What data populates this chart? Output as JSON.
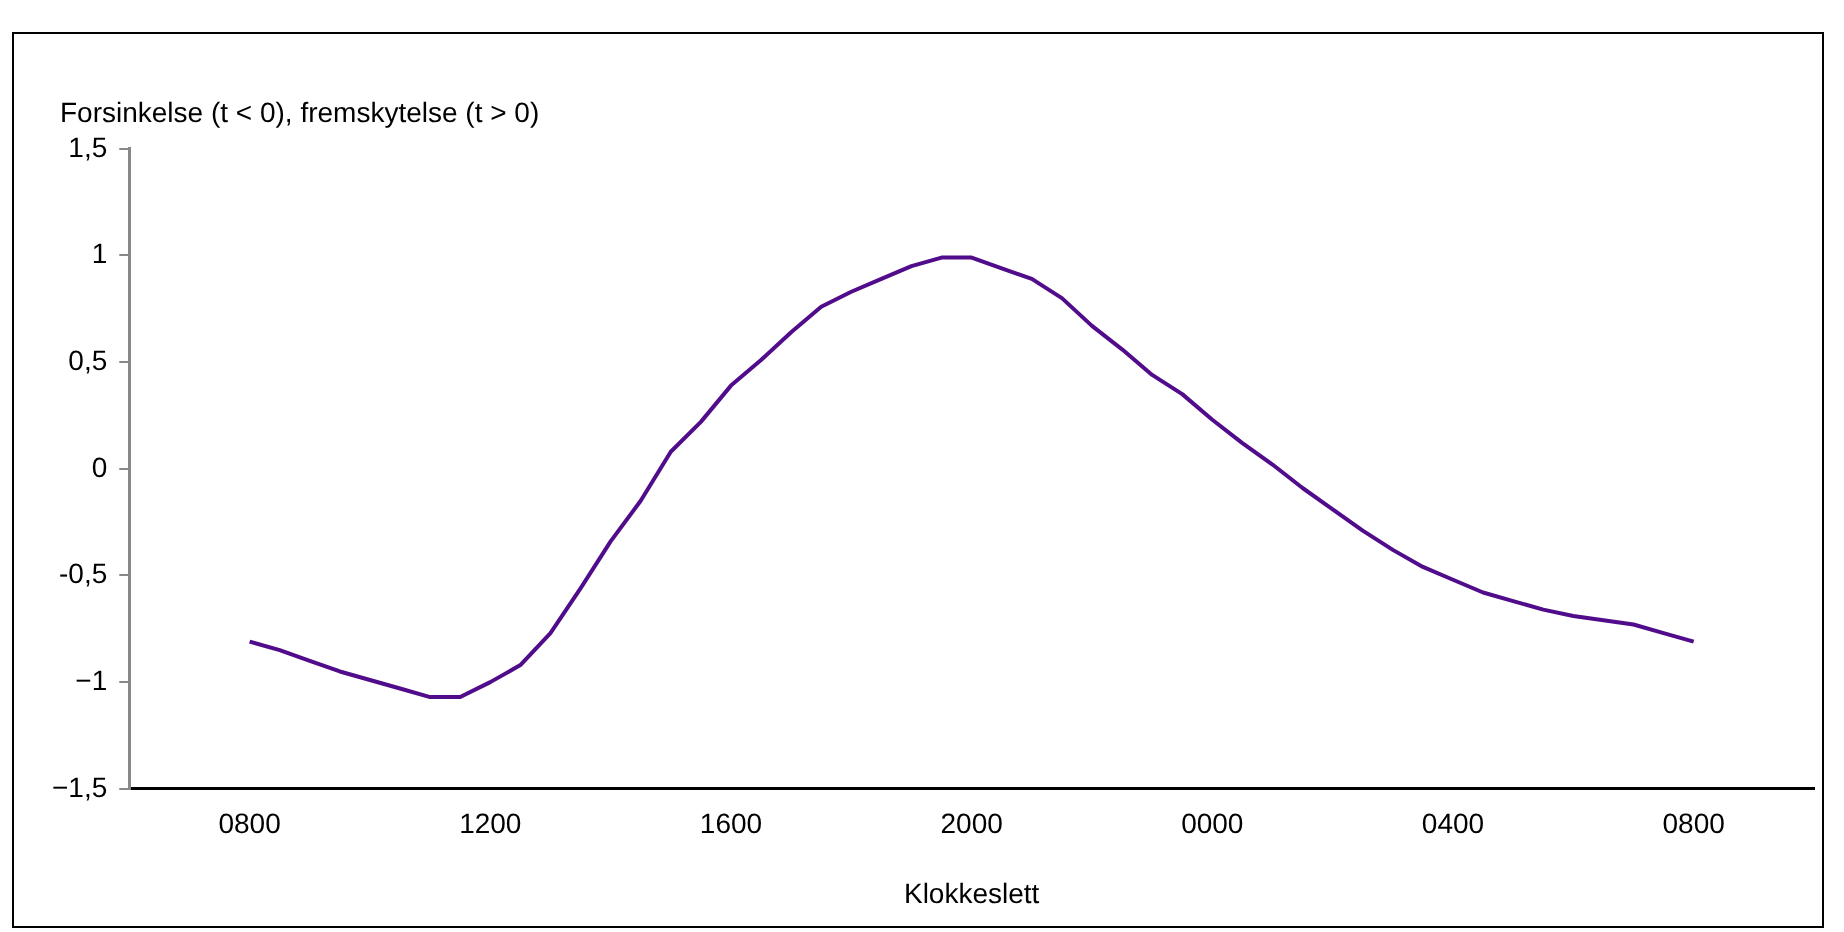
{
  "chart_data": {
    "type": "line",
    "ylabel": "Forsinkelse (t < 0), fremskytelse (t > 0)",
    "xlabel": "Klokkeslett",
    "categories": [
      "0800",
      null,
      null,
      null,
      null,
      null,
      null,
      null,
      "1200",
      null,
      null,
      null,
      null,
      null,
      null,
      null,
      "1600",
      null,
      null,
      null,
      null,
      null,
      null,
      null,
      "2000",
      null,
      null,
      null,
      null,
      null,
      null,
      null,
      "0000",
      null,
      null,
      null,
      null,
      null,
      null,
      null,
      "0400",
      null,
      null,
      null,
      null,
      null,
      null,
      null,
      "0800"
    ],
    "series": [
      {
        "color": "#500c8a",
        "values": [
          -0.81,
          -0.85,
          -0.9,
          -0.95,
          -0.99,
          -1.03,
          -1.07,
          -1.07,
          -1.0,
          -0.92,
          -0.77,
          -0.56,
          -0.34,
          -0.15,
          0.08,
          0.22,
          0.39,
          0.51,
          0.64,
          0.76,
          0.83,
          0.89,
          0.95,
          0.99,
          0.99,
          0.94,
          0.89,
          0.8,
          0.67,
          0.56,
          0.44,
          0.35,
          0.23,
          0.12,
          0.02,
          -0.09,
          -0.19,
          -0.29,
          -0.38,
          -0.46,
          -0.52,
          -0.58,
          -0.62,
          -0.66,
          -0.69,
          -0.71,
          -0.73,
          -0.77,
          -0.81
        ]
      }
    ],
    "ylim": [
      -1.5,
      1.5
    ],
    "yticks": [
      {
        "value": -1.5,
        "label": "−1,5"
      },
      {
        "value": -1,
        "label": "−1"
      },
      {
        "value": -0.5,
        "label": "-0,5"
      },
      0,
      {
        "value": 0.5,
        "label": "0,5"
      },
      1,
      {
        "value": 1.5,
        "label": "1,5"
      }
    ],
    "grid": false,
    "legend": false,
    "marker": "none",
    "line_style": "solid"
  }
}
